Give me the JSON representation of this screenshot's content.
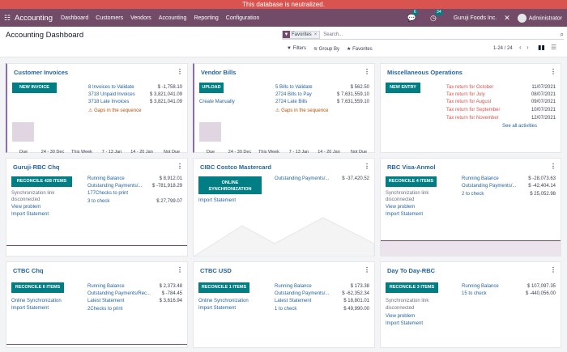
{
  "banner": "This database is neutralized.",
  "nav": {
    "app": "Accounting",
    "items": [
      "Dashboard",
      "Customers",
      "Vendors",
      "Accounting",
      "Reporting",
      "Configuration"
    ],
    "msg_count": "6",
    "activity_count": "34",
    "company": "Guruji Foods Inc.",
    "user": "Administrator"
  },
  "cp": {
    "title": "Accounting Dashboard",
    "facet": "Favorites",
    "search_placeholder": "Search...",
    "filters": "Filters",
    "group_by": "Group By",
    "favorites": "Favorites",
    "pager": "1-24 / 24"
  },
  "customer": {
    "title": "Customer Invoices",
    "button": "New Invoice",
    "rows": [
      [
        "8 Invoices to Validate",
        "$ -1,758.10"
      ],
      [
        "3718 Unpaid Invoices",
        "$ 3,821,041.09"
      ],
      [
        "3718 Late Invoices",
        "$ 3,821,041.09"
      ]
    ],
    "warning": "Gaps in the sequence",
    "chart": {
      "categories": [
        "Due",
        "24 - 30 Dec",
        "This Week",
        "7 - 13 Jan",
        "14 - 20 Jan",
        "Not Due"
      ],
      "values": [
        1,
        0,
        0,
        0,
        0,
        0
      ]
    }
  },
  "vendor": {
    "title": "Vendor Bills",
    "button": "Upload",
    "create": "Create Manually",
    "rows": [
      [
        "5 Bills to Validate",
        "$ 562.50"
      ],
      [
        "2724 Bills to Pay",
        "$ 7,631,559.10"
      ],
      [
        "2724 Late Bills",
        "$ 7,631,559.10"
      ]
    ],
    "warning": "Gaps in the sequence",
    "chart": {
      "categories": [
        "Due",
        "24 - 30 Dec",
        "This Week",
        "7 - 13 Jan",
        "14 - 20 Jan",
        "Not Due"
      ],
      "values": [
        1,
        0,
        0,
        0,
        0,
        0
      ]
    }
  },
  "misc": {
    "title": "Miscellaneous Operations",
    "button": "New Entry",
    "rows": [
      [
        "Tax return for October",
        "11/07/2021"
      ],
      [
        "Tax return for July",
        "08/07/2021"
      ],
      [
        "Tax return for August",
        "09/07/2021"
      ],
      [
        "Tax return for September",
        "10/07/2021"
      ],
      [
        "Tax return for November",
        "12/07/2021"
      ]
    ],
    "see_all": "See all activities"
  },
  "guruji": {
    "title": "Guruji-RBC Chq",
    "button": "Reconcile 428 Items",
    "left": [
      "Synchronization link",
      "disconnected",
      "View problem",
      "Import Statement"
    ],
    "rows": [
      [
        "Running Balance",
        "$ 8,912.01"
      ],
      [
        "Outstanding Payments/...",
        "$ -781,918.29"
      ],
      [
        "177Checks to print",
        ""
      ],
      [
        "3 to check",
        "$ 27,799.07"
      ]
    ]
  },
  "cibc": {
    "title": "CIBC Costco Mastercard",
    "button1": "Online",
    "button2": "Synchronization",
    "import": "Import Statement",
    "rows": [
      [
        "Outstanding Payments/...",
        "$ -37,420.52"
      ]
    ]
  },
  "rbcvisa": {
    "title": "RBC Visa-Anmol",
    "button": "Reconcile 4 Items",
    "left": [
      "Synchronization link",
      "disconnected",
      "View problem",
      "Import Statement"
    ],
    "rows": [
      [
        "Running Balance",
        "$ -28,073.63"
      ],
      [
        "Outstanding Payments/...",
        "$ -42,404.14"
      ],
      [
        "2 to check",
        "$ 25,052.98"
      ]
    ]
  },
  "ctbc": {
    "title": "CTBC Chq",
    "button": "Reconcile 6 Items",
    "left": [
      "Online Synchronization",
      "Import Statement"
    ],
    "rows": [
      [
        "Running Balance",
        "$ 2,373.48"
      ],
      [
        "Outstanding Payments/Rec...",
        "$ -784.45"
      ],
      [
        "Latest Statement",
        "$ 3,616.94"
      ],
      [
        "2Checks to print",
        ""
      ]
    ]
  },
  "ctbcusd": {
    "title": "CTBC USD",
    "button": "Reconcile 1 Items",
    "left": [
      "Online Synchronization",
      "Import Statement"
    ],
    "rows": [
      [
        "Running Balance",
        "$ 173.38"
      ],
      [
        "Outstanding Payments/...",
        "$ -62,352.34"
      ],
      [
        "Latest Statement",
        "$ 18,801.01"
      ],
      [
        "1 to check",
        "$ 49,990.00"
      ]
    ]
  },
  "daytoday": {
    "title": "Day To Day-RBC",
    "button": "Reconcile 3 Items",
    "left": [
      "Synchronization link",
      "disconnected",
      "View problem",
      "Import Statement"
    ],
    "rows": [
      [
        "Running Balance",
        "$ 107,097.35"
      ],
      [
        "15 to check",
        "$ -440,056.00"
      ]
    ]
  }
}
